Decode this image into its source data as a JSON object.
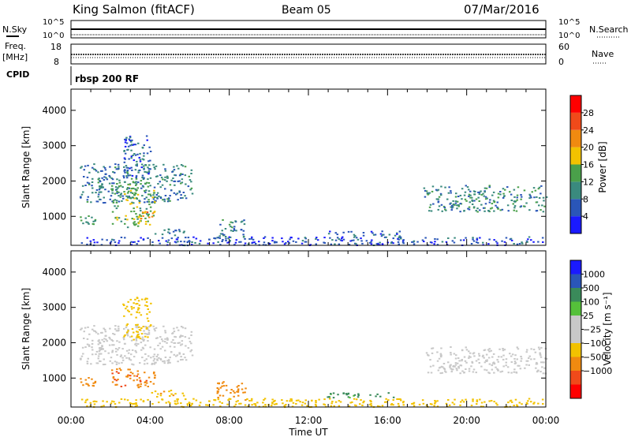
{
  "header": {
    "station": "King Salmon (fitACF)",
    "beam": "Beam 05",
    "date": "07/Mar/2016"
  },
  "x_ticks": [
    "00:00",
    "04:00",
    "08:00",
    "12:00",
    "16:00",
    "20:00",
    "00:00"
  ],
  "x_label": "Time UT",
  "mini_panels": {
    "nsky_label": "N.Sky",
    "nsearch_label": "N.Search",
    "freq_label_1": "Freq.",
    "freq_label_2": "[MHz]",
    "nave_label": "Nave",
    "cpid_label": "CPID",
    "cpid_value": "rbsp 200 RF",
    "noise_ticks_left": [
      "10^5",
      "10^0"
    ],
    "noise_ticks_right": [
      "10^5",
      "10^0"
    ],
    "freq_ticks": [
      "18",
      "8"
    ],
    "nave_ticks": [
      "60",
      "0"
    ]
  },
  "colors": {
    "power": [
      "#1a1aff",
      "#2a56b8",
      "#3a8a7e",
      "#4aa04a",
      "#f2c200",
      "#f08a10",
      "#f04a1a",
      "#ff0000"
    ],
    "velocity": [
      "#ff0000",
      "#f04a1a",
      "#f08a10",
      "#f2c200",
      "#c8c8c8",
      "#c8c8c8",
      "#55c03a",
      "#3a8a5a",
      "#2a56b8",
      "#1a1aff"
    ]
  },
  "chart_data": [
    {
      "type": "heatmap",
      "name": "power",
      "xlim": [
        0,
        24
      ],
      "ylabel": "Slant Range [km]",
      "y_ticks": [
        1000,
        2000,
        3000,
        4000
      ],
      "ylim": [
        180,
        4600
      ],
      "colorbar_label": "Power [dB]",
      "colorbar_ticks": [
        "4",
        "8",
        "12",
        "16",
        "20",
        "24",
        "28"
      ],
      "colorbar_range": [
        0,
        32
      ],
      "regions": [
        {
          "x": [
            0.4,
            6.1
          ],
          "y": [
            1400,
            2500
          ],
          "value": 9
        },
        {
          "x": [
            0.3,
            1.2
          ],
          "y": [
            650,
            1050
          ],
          "value": 12
        },
        {
          "x": [
            2.0,
            4.2
          ],
          "y": [
            700,
            2000
          ],
          "value": 14
        },
        {
          "x": [
            3.4,
            4.1
          ],
          "y": [
            850,
            1150
          ],
          "value": 22
        },
        {
          "x": [
            2.6,
            4.0
          ],
          "y": [
            2100,
            3300
          ],
          "value": 7
        },
        {
          "x": [
            4.0,
            5.7
          ],
          "y": [
            480,
            680
          ],
          "value": 8
        },
        {
          "x": [
            7.3,
            8.8
          ],
          "y": [
            400,
            920
          ],
          "value": 10
        },
        {
          "x": [
            12.8,
            16.6
          ],
          "y": [
            460,
            600
          ],
          "value": 6
        },
        {
          "x": [
            17.8,
            24
          ],
          "y": [
            1150,
            1900
          ],
          "value": 10
        },
        {
          "x": [
            0.5,
            24
          ],
          "y": [
            200,
            440
          ],
          "value": 5
        }
      ]
    },
    {
      "type": "heatmap",
      "name": "velocity",
      "xlim": [
        0,
        24
      ],
      "ylabel": "Slant Range [km]",
      "y_ticks": [
        1000,
        2000,
        3000,
        4000
      ],
      "ylim": [
        180,
        4600
      ],
      "colorbar_label": "Velocity [m s⁻¹]",
      "colorbar_ticks": [
        "1000",
        "500",
        "100",
        "25",
        "−25",
        "−100",
        "−500",
        "−1000"
      ],
      "regions": [
        {
          "x": [
            0.4,
            6.1
          ],
          "y": [
            1400,
            2500
          ],
          "value": 0
        },
        {
          "x": [
            0.3,
            1.2
          ],
          "y": [
            650,
            1050
          ],
          "value": -300
        },
        {
          "x": [
            2.0,
            4.2
          ],
          "y": [
            700,
            1300
          ],
          "value": -400
        },
        {
          "x": [
            2.6,
            4.0
          ],
          "y": [
            2100,
            3300
          ],
          "value": -50
        },
        {
          "x": [
            4.0,
            5.7
          ],
          "y": [
            480,
            680
          ],
          "value": -80
        },
        {
          "x": [
            7.3,
            8.8
          ],
          "y": [
            400,
            920
          ],
          "value": -250
        },
        {
          "x": [
            12.8,
            16.6
          ],
          "y": [
            460,
            600
          ],
          "value": 150
        },
        {
          "x": [
            17.8,
            24
          ],
          "y": [
            1150,
            1900
          ],
          "value": 0
        },
        {
          "x": [
            0.5,
            24
          ],
          "y": [
            200,
            440
          ],
          "value": -60
        }
      ]
    }
  ]
}
